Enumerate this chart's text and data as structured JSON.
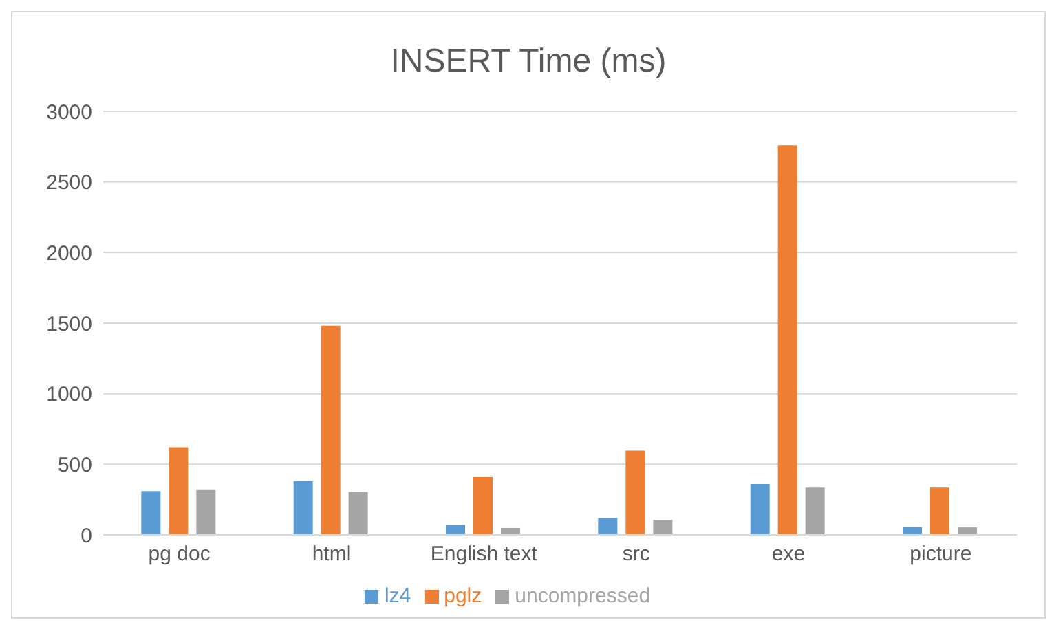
{
  "chart_data": {
    "type": "bar",
    "title": "INSERT Time (ms)",
    "categories": [
      "pg doc",
      "html",
      "English text",
      "src",
      "exe",
      "picture"
    ],
    "series": [
      {
        "name": "lz4",
        "color": "#5b9bd5",
        "values": [
          311,
          381,
          71,
          120,
          360,
          56
        ]
      },
      {
        "name": "pglz",
        "color": "#ed7d31",
        "values": [
          621,
          1482,
          409,
          596,
          2760,
          335
        ]
      },
      {
        "name": "uncompressed",
        "color": "#a5a5a5",
        "values": [
          318,
          304,
          49,
          106,
          335,
          53
        ]
      }
    ],
    "ylim": [
      0,
      3000
    ],
    "yticks": [
      0,
      500,
      1000,
      1500,
      2000,
      2500,
      3000
    ],
    "grid": "y",
    "legend": "bottom"
  }
}
